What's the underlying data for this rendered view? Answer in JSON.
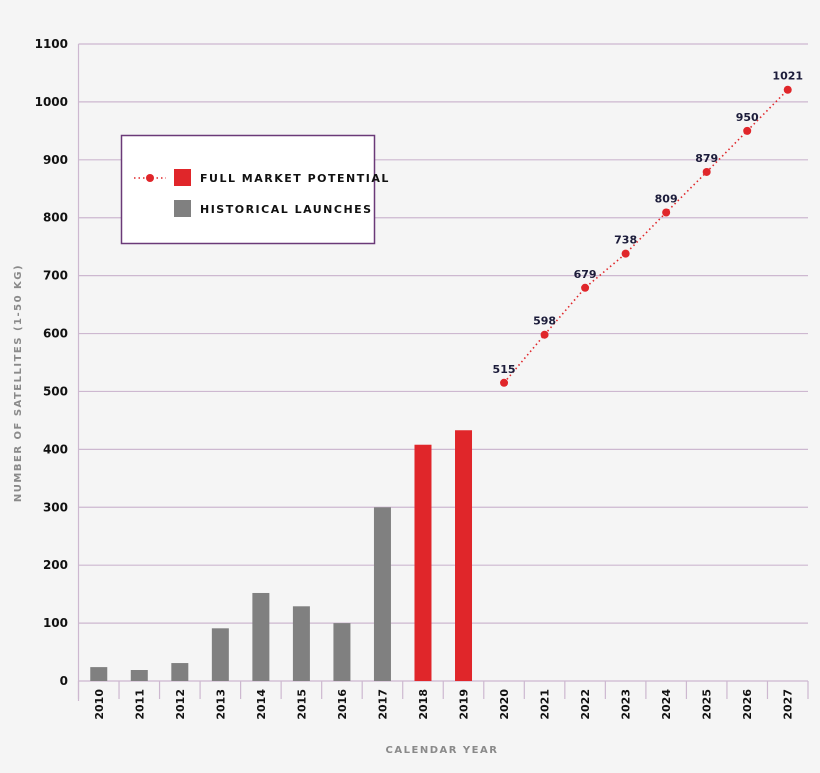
{
  "chart_data": {
    "type": "bar",
    "title": "",
    "xlabel": "CALENDAR YEAR",
    "ylabel": "NUMBER OF SATELLITES (1-50 KG)",
    "ylim": [
      0,
      1100
    ],
    "yticks": [
      0,
      100,
      200,
      300,
      400,
      500,
      600,
      700,
      800,
      900,
      1000,
      1100
    ],
    "grid": true,
    "legend_placement": "top-left",
    "categories": [
      "2010",
      "2011",
      "2012",
      "2013",
      "2014",
      "2015",
      "2016",
      "2017",
      "2018",
      "2019",
      "2020",
      "2021",
      "2022",
      "2023",
      "2024",
      "2025",
      "2026",
      "2027"
    ],
    "series": [
      {
        "name": "HISTORICAL LAUNCHES",
        "type": "bar",
        "color": "#808080",
        "x": [
          "2010",
          "2011",
          "2012",
          "2013",
          "2014",
          "2015",
          "2016",
          "2017"
        ],
        "values": [
          24,
          19,
          31,
          91,
          152,
          129,
          100,
          300
        ]
      },
      {
        "name": "FULL MARKET POTENTIAL",
        "type": "bar",
        "color": "#e0262a",
        "x": [
          "2018",
          "2019"
        ],
        "values": [
          408,
          433
        ]
      },
      {
        "name": "FULL MARKET POTENTIAL",
        "type": "line",
        "style": "dotted",
        "color": "#e0262a",
        "x": [
          "2020",
          "2021",
          "2022",
          "2023",
          "2024",
          "2025",
          "2026",
          "2027"
        ],
        "values": [
          515,
          598,
          679,
          738,
          809,
          879,
          950,
          1021
        ],
        "labels": [
          "515",
          "598",
          "679",
          "738",
          "809",
          "879",
          "950",
          "1021"
        ]
      }
    ],
    "legend": [
      {
        "label": "FULL MARKET POTENTIAL",
        "color": "#e0262a"
      },
      {
        "label": "HISTORICAL LAUNCHES",
        "color": "#808080"
      }
    ],
    "colors": {
      "grid": "#cdb8d0",
      "legend_border": "#6b3a78",
      "background": "#f5f5f5"
    }
  }
}
